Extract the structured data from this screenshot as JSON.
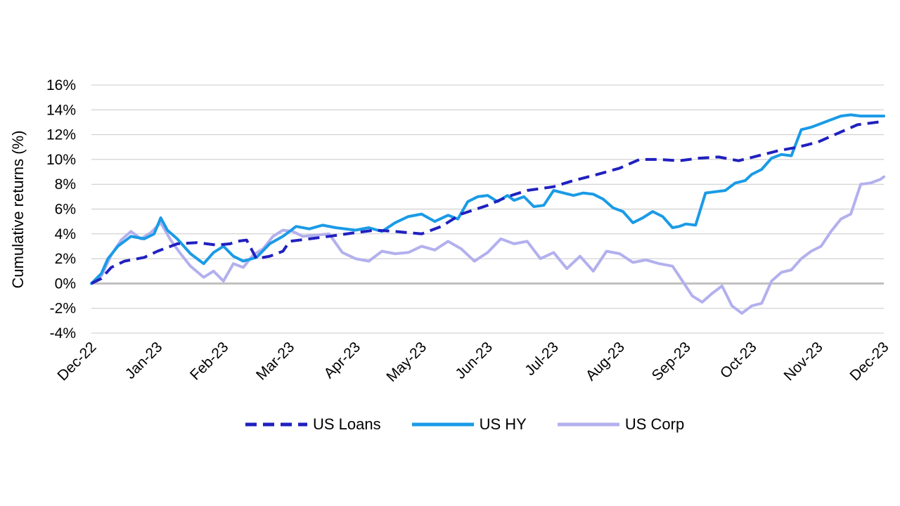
{
  "chart_data": {
    "type": "line",
    "title": "",
    "xlabel": "",
    "ylabel": "Cumulative returns (%)",
    "x_ticks": [
      "Dec-22",
      "Jan-23",
      "Feb-23",
      "Mar-23",
      "Apr-23",
      "May-23",
      "Jun-23",
      "Jul-23",
      "Aug-23",
      "Sep-23",
      "Oct-23",
      "Nov-23",
      "Dec-23"
    ],
    "y_ticks": [
      "16%",
      "14%",
      "12%",
      "10%",
      "8%",
      "6%",
      "4%",
      "2%",
      "0%",
      "-2%",
      "-4%"
    ],
    "ylim": [
      -4,
      16
    ],
    "xlim": [
      0,
      12
    ],
    "grid": true,
    "legend_position": "bottom-center",
    "series": [
      {
        "name": "US Loans",
        "color": "#2020c0",
        "style": "dashed",
        "x": [
          0,
          0.15,
          0.3,
          0.5,
          0.8,
          1.0,
          1.3,
          1.6,
          1.9,
          2.1,
          2.2,
          2.35,
          2.5,
          2.7,
          2.9,
          3.0,
          3.3,
          3.6,
          4.0,
          4.3,
          4.6,
          5.0,
          5.3,
          5.6,
          6.0,
          6.3,
          6.6,
          7.0,
          7.3,
          7.6,
          8.0,
          8.3,
          8.6,
          8.9,
          9.2,
          9.5,
          9.8,
          10.1,
          10.4,
          10.7,
          11.0,
          11.3,
          11.6,
          11.9,
          12.0
        ],
        "values": [
          0,
          0.4,
          1.3,
          1.8,
          2.1,
          2.6,
          3.2,
          3.3,
          3.1,
          3.2,
          3.4,
          3.5,
          2.0,
          2.2,
          2.6,
          3.4,
          3.6,
          3.8,
          4.1,
          4.3,
          4.2,
          4.0,
          4.6,
          5.6,
          6.3,
          7.0,
          7.5,
          7.8,
          8.3,
          8.7,
          9.3,
          10.0,
          10.0,
          9.9,
          10.1,
          10.2,
          9.9,
          10.3,
          10.7,
          11.0,
          11.4,
          12.1,
          12.8,
          13.0,
          13.1
        ]
      },
      {
        "name": "US HY",
        "color": "#1a9be6",
        "style": "solid",
        "x": [
          0,
          0.15,
          0.25,
          0.4,
          0.6,
          0.8,
          0.95,
          1.05,
          1.15,
          1.3,
          1.5,
          1.7,
          1.85,
          2.0,
          2.15,
          2.3,
          2.5,
          2.7,
          2.9,
          3.0,
          3.1,
          3.3,
          3.5,
          3.7,
          4.0,
          4.2,
          4.4,
          4.6,
          4.8,
          5.0,
          5.2,
          5.4,
          5.55,
          5.7,
          5.85,
          6.0,
          6.15,
          6.3,
          6.4,
          6.55,
          6.7,
          6.85,
          7.0,
          7.15,
          7.3,
          7.45,
          7.6,
          7.75,
          7.9,
          8.05,
          8.2,
          8.35,
          8.5,
          8.65,
          8.8,
          8.9,
          9.0,
          9.15,
          9.3,
          9.45,
          9.6,
          9.75,
          9.9,
          10.0,
          10.15,
          10.3,
          10.45,
          10.6,
          10.75,
          10.9,
          11.05,
          11.2,
          11.35,
          11.5,
          11.65,
          11.8,
          11.95,
          12.0
        ],
        "values": [
          0,
          0.8,
          2.0,
          3.0,
          3.8,
          3.6,
          4.0,
          5.3,
          4.3,
          3.6,
          2.4,
          1.6,
          2.5,
          3.0,
          2.2,
          1.8,
          2.1,
          3.2,
          3.8,
          4.2,
          4.6,
          4.4,
          4.7,
          4.5,
          4.3,
          4.5,
          4.2,
          4.9,
          5.4,
          5.6,
          5.0,
          5.5,
          5.2,
          6.6,
          7.0,
          7.1,
          6.6,
          7.1,
          6.7,
          7.0,
          6.2,
          6.3,
          7.5,
          7.3,
          7.1,
          7.3,
          7.2,
          6.8,
          6.1,
          5.8,
          4.9,
          5.3,
          5.8,
          5.4,
          4.5,
          4.6,
          4.8,
          4.7,
          7.3,
          7.4,
          7.5,
          8.1,
          8.3,
          8.8,
          9.2,
          10.1,
          10.4,
          10.3,
          12.4,
          12.6,
          12.9,
          13.2,
          13.5,
          13.6,
          13.5,
          13.5,
          13.5,
          13.5
        ]
      },
      {
        "name": "US Corp",
        "color": "#b3b0ee",
        "style": "solid",
        "x": [
          0,
          0.15,
          0.3,
          0.45,
          0.6,
          0.75,
          0.9,
          1.05,
          1.2,
          1.35,
          1.5,
          1.7,
          1.85,
          2.0,
          2.15,
          2.3,
          2.45,
          2.6,
          2.75,
          2.9,
          3.05,
          3.2,
          3.4,
          3.6,
          3.8,
          4.0,
          4.2,
          4.4,
          4.6,
          4.8,
          5.0,
          5.2,
          5.4,
          5.6,
          5.8,
          6.0,
          6.2,
          6.4,
          6.6,
          6.8,
          7.0,
          7.2,
          7.4,
          7.6,
          7.8,
          8.0,
          8.2,
          8.4,
          8.6,
          8.8,
          8.95,
          9.1,
          9.25,
          9.4,
          9.55,
          9.7,
          9.85,
          10.0,
          10.15,
          10.3,
          10.45,
          10.6,
          10.75,
          10.9,
          11.05,
          11.2,
          11.35,
          11.5,
          11.65,
          11.8,
          11.95,
          12.0
        ],
        "values": [
          0,
          0.6,
          2.3,
          3.5,
          4.2,
          3.6,
          4.1,
          4.9,
          3.5,
          2.4,
          1.4,
          0.5,
          1.0,
          0.2,
          1.6,
          1.3,
          2.3,
          2.8,
          3.8,
          4.3,
          4.2,
          3.8,
          3.9,
          4.0,
          2.5,
          2.0,
          1.8,
          2.6,
          2.4,
          2.5,
          3.0,
          2.7,
          3.4,
          2.8,
          1.8,
          2.5,
          3.6,
          3.2,
          3.4,
          2.0,
          2.5,
          1.2,
          2.2,
          1.0,
          2.6,
          2.4,
          1.7,
          1.9,
          1.6,
          1.4,
          0.2,
          -1.0,
          -1.5,
          -0.8,
          -0.2,
          -1.8,
          -2.4,
          -1.8,
          -1.6,
          0.2,
          0.9,
          1.1,
          2.0,
          2.6,
          3.0,
          4.2,
          5.2,
          5.6,
          8.0,
          8.1,
          8.4,
          8.6
        ]
      }
    ]
  }
}
